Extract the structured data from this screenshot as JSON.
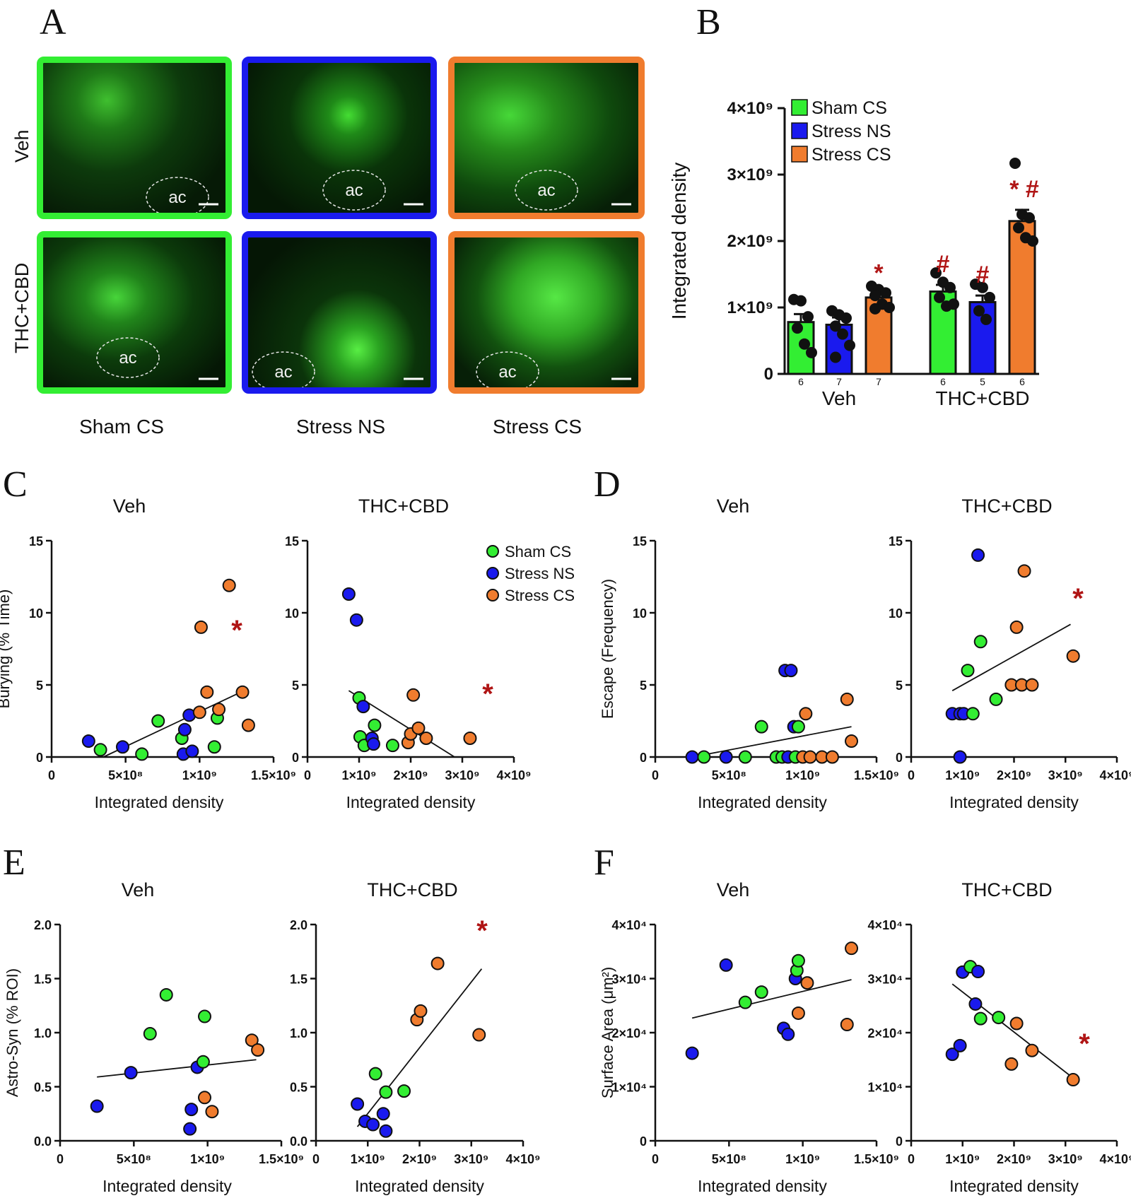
{
  "panels": {
    "A": "A",
    "B": "B",
    "C": "C",
    "D": "D",
    "E": "E",
    "F": "F"
  },
  "colors": {
    "sham": "#33ee33",
    "stressNS": "#1a1aee",
    "stressCS": "#f07c2e",
    "star": "#b01515"
  },
  "panelA": {
    "row_labels": [
      "Veh",
      "THC+CBD"
    ],
    "col_labels": [
      "Sham CS",
      "Stress NS",
      "Stress CS"
    ],
    "region_label": "ac"
  },
  "chart_data": [
    {
      "panel": "B",
      "type": "bar",
      "ylabel": "Integrated density",
      "yticks": [
        "0",
        "1×10⁹",
        "2×10⁹",
        "3×10⁹",
        "4×10⁹"
      ],
      "ylim": [
        0,
        4000000000.0
      ],
      "groups": [
        "Veh",
        "THC+CBD"
      ],
      "legend": [
        "Sham CS",
        "Stress NS",
        "Stress CS"
      ],
      "bars": [
        {
          "group": "Veh",
          "series": "Sham CS",
          "value": 780000000.0,
          "sem": 120000000.0,
          "n": "6",
          "mark": "",
          "points": [
            1120000000.0,
            1100000000.0,
            860000000.0,
            690000000.0,
            450000000.0,
            320000000.0
          ]
        },
        {
          "group": "Veh",
          "series": "Stress NS",
          "value": 740000000.0,
          "sem": 110000000.0,
          "n": "7",
          "mark": "",
          "points": [
            950000000.0,
            890000000.0,
            840000000.0,
            720000000.0,
            600000000.0,
            430000000.0,
            250000000.0
          ]
        },
        {
          "group": "Veh",
          "series": "Stress CS",
          "value": 1150000000.0,
          "sem": 60000000.0,
          "n": "7",
          "mark": "*",
          "points": [
            1320000000.0,
            1270000000.0,
            1220000000.0,
            1180000000.0,
            1050000000.0,
            1000000000.0,
            980000000.0
          ]
        },
        {
          "group": "THC+CBD",
          "series": "Sham CS",
          "value": 1240000000.0,
          "sem": 100000000.0,
          "n": "6",
          "mark": "#",
          "points": [
            1520000000.0,
            1380000000.0,
            1300000000.0,
            1150000000.0,
            1020000000.0,
            1050000000.0
          ]
        },
        {
          "group": "THC+CBD",
          "series": "Stress NS",
          "value": 1080000000.0,
          "sem": 100000000.0,
          "n": "5",
          "mark": "#",
          "points": [
            1350000000.0,
            1300000000.0,
            1150000000.0,
            950000000.0,
            820000000.0
          ]
        },
        {
          "group": "THC+CBD",
          "series": "Stress CS",
          "value": 2300000000.0,
          "sem": 170000000.0,
          "n": "6",
          "mark": "* #",
          "points": [
            3170000000.0,
            2400000000.0,
            2350000000.0,
            2200000000.0,
            2050000000.0,
            2000000000.0
          ]
        }
      ]
    },
    {
      "panel": "C",
      "type": "scatter",
      "title": "Veh",
      "ylabel": "Burying (% Time)",
      "xlabel": "Integrated density",
      "xlim": [
        0,
        1500000000.0
      ],
      "ylim": [
        0,
        15
      ],
      "xticks": [
        "0",
        "5×10⁸",
        "1×10⁹",
        "1.5×10⁹"
      ],
      "yticks": [
        "0",
        "5",
        "10",
        "15"
      ],
      "sig": "*",
      "fit": [
        [
          350000000.0,
          0
        ],
        [
          1300000000.0,
          4.6
        ]
      ],
      "points": [
        {
          "x": 250000000.0,
          "y": 1.1,
          "g": "NS"
        },
        {
          "x": 330000000.0,
          "y": 0.5,
          "g": "Sham"
        },
        {
          "x": 480000000.0,
          "y": 0.7,
          "g": "NS"
        },
        {
          "x": 610000000.0,
          "y": 0.2,
          "g": "Sham"
        },
        {
          "x": 720000000.0,
          "y": 2.5,
          "g": "Sham"
        },
        {
          "x": 880000000.0,
          "y": 1.3,
          "g": "Sham"
        },
        {
          "x": 900000000.0,
          "y": 1.9,
          "g": "NS"
        },
        {
          "x": 930000000.0,
          "y": 2.9,
          "g": "NS"
        },
        {
          "x": 890000000.0,
          "y": 0.2,
          "g": "NS"
        },
        {
          "x": 950000000.0,
          "y": 0.4,
          "g": "NS"
        },
        {
          "x": 1000000000.0,
          "y": 3.1,
          "g": "CS"
        },
        {
          "x": 1010000000.0,
          "y": 9.0,
          "g": "CS"
        },
        {
          "x": 1050000000.0,
          "y": 4.5,
          "g": "CS"
        },
        {
          "x": 1100000000.0,
          "y": 0.7,
          "g": "Sham"
        },
        {
          "x": 1120000000.0,
          "y": 2.7,
          "g": "Sham"
        },
        {
          "x": 1130000000.0,
          "y": 3.3,
          "g": "CS"
        },
        {
          "x": 1200000000.0,
          "y": 11.9,
          "g": "CS"
        },
        {
          "x": 1290000000.0,
          "y": 4.5,
          "g": "CS"
        },
        {
          "x": 1330000000.0,
          "y": 2.2,
          "g": "CS"
        }
      ]
    },
    {
      "panel": "C2",
      "type": "scatter",
      "title": "THC+CBD",
      "xlabel": "Integrated density",
      "xlim": [
        0,
        4000000000.0
      ],
      "ylim": [
        0,
        15
      ],
      "xticks": [
        "0",
        "1×10⁹",
        "2×10⁹",
        "3×10⁹",
        "4×10⁹"
      ],
      "yticks": [
        "0",
        "5",
        "10",
        "15"
      ],
      "sig": "*",
      "fit": [
        [
          800000000.0,
          4.6
        ],
        [
          2850000000.0,
          0
        ]
      ],
      "legend": [
        "Sham CS",
        "Stress NS",
        "Stress CS"
      ],
      "points": [
        {
          "x": 800000000.0,
          "y": 11.3,
          "g": "NS"
        },
        {
          "x": 950000000.0,
          "y": 9.5,
          "g": "NS"
        },
        {
          "x": 1000000000.0,
          "y": 4.1,
          "g": "Sham"
        },
        {
          "x": 1020000000.0,
          "y": 1.4,
          "g": "Sham"
        },
        {
          "x": 1080000000.0,
          "y": 3.5,
          "g": "NS"
        },
        {
          "x": 1100000000.0,
          "y": 0.8,
          "g": "Sham"
        },
        {
          "x": 1250000000.0,
          "y": 1.3,
          "g": "NS"
        },
        {
          "x": 1280000000.0,
          "y": 0.9,
          "g": "NS"
        },
        {
          "x": 1300000000.0,
          "y": 2.2,
          "g": "Sham"
        },
        {
          "x": 1650000000.0,
          "y": 0.8,
          "g": "Sham"
        },
        {
          "x": 1950000000.0,
          "y": 1.0,
          "g": "CS"
        },
        {
          "x": 2000000000.0,
          "y": 1.6,
          "g": "CS"
        },
        {
          "x": 2050000000.0,
          "y": 4.3,
          "g": "CS"
        },
        {
          "x": 2150000000.0,
          "y": 2.0,
          "g": "CS"
        },
        {
          "x": 2300000000.0,
          "y": 1.3,
          "g": "CS"
        },
        {
          "x": 3150000000.0,
          "y": 1.3,
          "g": "CS"
        }
      ]
    },
    {
      "panel": "D",
      "type": "scatter",
      "title": "Veh",
      "ylabel": "Escape (Frequency)",
      "xlabel": "Integrated density",
      "xlim": [
        0,
        1500000000.0
      ],
      "ylim": [
        0,
        15
      ],
      "xticks": [
        "0",
        "5×10⁸",
        "1×10⁹",
        "1.5×10⁹"
      ],
      "yticks": [
        "0",
        "5",
        "10",
        "15"
      ],
      "sig": "",
      "fit": [
        [
          250000000.0,
          0
        ],
        [
          1330000000.0,
          2.1
        ]
      ],
      "points": [
        {
          "x": 250000000.0,
          "y": 0,
          "g": "NS"
        },
        {
          "x": 330000000.0,
          "y": 0,
          "g": "Sham"
        },
        {
          "x": 480000000.0,
          "y": 0,
          "g": "NS"
        },
        {
          "x": 610000000.0,
          "y": 0,
          "g": "Sham"
        },
        {
          "x": 720000000.0,
          "y": 2.1,
          "g": "Sham"
        },
        {
          "x": 820000000.0,
          "y": 0,
          "g": "Sham"
        },
        {
          "x": 860000000.0,
          "y": 0,
          "g": "Sham"
        },
        {
          "x": 880000000.0,
          "y": 6.0,
          "g": "NS"
        },
        {
          "x": 920000000.0,
          "y": 6.0,
          "g": "NS"
        },
        {
          "x": 900000000.0,
          "y": 0,
          "g": "NS"
        },
        {
          "x": 940000000.0,
          "y": 2.1,
          "g": "NS"
        },
        {
          "x": 970000000.0,
          "y": 2.1,
          "g": "Sham"
        },
        {
          "x": 950000000.0,
          "y": 0,
          "g": "Sham"
        },
        {
          "x": 1000000000.0,
          "y": 0,
          "g": "CS"
        },
        {
          "x": 1020000000.0,
          "y": 3.0,
          "g": "CS"
        },
        {
          "x": 1050000000.0,
          "y": 0,
          "g": "CS"
        },
        {
          "x": 1130000000.0,
          "y": 0,
          "g": "CS"
        },
        {
          "x": 1200000000.0,
          "y": 0,
          "g": "CS"
        },
        {
          "x": 1300000000.0,
          "y": 4.0,
          "g": "CS"
        },
        {
          "x": 1330000000.0,
          "y": 1.1,
          "g": "CS"
        }
      ]
    },
    {
      "panel": "D2",
      "type": "scatter",
      "title": "THC+CBD",
      "xlabel": "Integrated density",
      "xlim": [
        0,
        4000000000.0
      ],
      "ylim": [
        0,
        15
      ],
      "xticks": [
        "0",
        "1×10⁹",
        "2×10⁹",
        "3×10⁹",
        "4×10⁹"
      ],
      "yticks": [
        "0",
        "5",
        "10",
        "15"
      ],
      "sig": "*",
      "fit": [
        [
          800000000.0,
          4.6
        ],
        [
          3100000000.0,
          9.2
        ]
      ],
      "points": [
        {
          "x": 800000000.0,
          "y": 3.0,
          "g": "NS"
        },
        {
          "x": 950000000.0,
          "y": 3.0,
          "g": "NS"
        },
        {
          "x": 1020000000.0,
          "y": 3.0,
          "g": "NS"
        },
        {
          "x": 1200000000.0,
          "y": 3.0,
          "g": "Sham"
        },
        {
          "x": 950000000.0,
          "y": 0,
          "g": "NS"
        },
        {
          "x": 1100000000.0,
          "y": 6.0,
          "g": "Sham"
        },
        {
          "x": 1300000000.0,
          "y": 14.0,
          "g": "NS"
        },
        {
          "x": 1350000000.0,
          "y": 8.0,
          "g": "Sham"
        },
        {
          "x": 1650000000.0,
          "y": 4.0,
          "g": "Sham"
        },
        {
          "x": 1950000000.0,
          "y": 5.0,
          "g": "CS"
        },
        {
          "x": 2050000000.0,
          "y": 9.0,
          "g": "CS"
        },
        {
          "x": 2150000000.0,
          "y": 5.0,
          "g": "CS"
        },
        {
          "x": 2200000000.0,
          "y": 12.9,
          "g": "CS"
        },
        {
          "x": 2350000000.0,
          "y": 5.0,
          "g": "CS"
        },
        {
          "x": 3150000000.0,
          "y": 7.0,
          "g": "CS"
        }
      ]
    },
    {
      "panel": "E",
      "type": "scatter",
      "title": "Veh",
      "ylabel": "Astro-Syn (% ROI)",
      "xlabel": "Integrated density",
      "xlim": [
        0,
        1500000000.0
      ],
      "ylim": [
        0,
        2.0
      ],
      "xticks": [
        "0",
        "5×10⁸",
        "1×10⁹",
        "1.5×10⁹"
      ],
      "yticks": [
        "0.0",
        "0.5",
        "1.0",
        "1.5",
        "2.0"
      ],
      "sig": "",
      "fit": [
        [
          250000000.0,
          0.59
        ],
        [
          1330000000.0,
          0.75
        ]
      ],
      "points": [
        {
          "x": 250000000.0,
          "y": 0.32,
          "g": "NS"
        },
        {
          "x": 480000000.0,
          "y": 0.63,
          "g": "NS"
        },
        {
          "x": 610000000.0,
          "y": 0.99,
          "g": "Sham"
        },
        {
          "x": 720000000.0,
          "y": 1.35,
          "g": "Sham"
        },
        {
          "x": 880000000.0,
          "y": 0.11,
          "g": "NS"
        },
        {
          "x": 890000000.0,
          "y": 0.29,
          "g": "NS"
        },
        {
          "x": 930000000.0,
          "y": 0.68,
          "g": "NS"
        },
        {
          "x": 970000000.0,
          "y": 0.73,
          "g": "Sham"
        },
        {
          "x": 980000000.0,
          "y": 1.15,
          "g": "Sham"
        },
        {
          "x": 980000000.0,
          "y": 0.4,
          "g": "CS"
        },
        {
          "x": 1030000000.0,
          "y": 0.27,
          "g": "CS"
        },
        {
          "x": 1300000000.0,
          "y": 0.93,
          "g": "CS"
        },
        {
          "x": 1340000000.0,
          "y": 0.84,
          "g": "CS"
        }
      ]
    },
    {
      "panel": "E2",
      "type": "scatter",
      "title": "THC+CBD",
      "xlabel": "Integrated density",
      "xlim": [
        0,
        4000000000.0
      ],
      "ylim": [
        0,
        2.0
      ],
      "xticks": [
        "0",
        "1×10⁹",
        "2×10⁹",
        "3×10⁹",
        "4×10⁹"
      ],
      "yticks": [
        "0.0",
        "0.5",
        "1.0",
        "1.5",
        "2.0"
      ],
      "sig": "*",
      "fit": [
        [
          800000000.0,
          0.13
        ],
        [
          3200000000.0,
          1.59
        ]
      ],
      "points": [
        {
          "x": 800000000.0,
          "y": 0.34,
          "g": "NS"
        },
        {
          "x": 950000000.0,
          "y": 0.18,
          "g": "NS"
        },
        {
          "x": 1100000000.0,
          "y": 0.15,
          "g": "NS"
        },
        {
          "x": 1150000000.0,
          "y": 0.62,
          "g": "Sham"
        },
        {
          "x": 1300000000.0,
          "y": 0.25,
          "g": "NS"
        },
        {
          "x": 1350000000.0,
          "y": 0.45,
          "g": "Sham"
        },
        {
          "x": 1350000000.0,
          "y": 0.09,
          "g": "NS"
        },
        {
          "x": 1700000000.0,
          "y": 0.46,
          "g": "Sham"
        },
        {
          "x": 1950000000.0,
          "y": 1.12,
          "g": "CS"
        },
        {
          "x": 2020000000.0,
          "y": 1.2,
          "g": "CS"
        },
        {
          "x": 2350000000.0,
          "y": 1.64,
          "g": "CS"
        },
        {
          "x": 3150000000.0,
          "y": 0.98,
          "g": "CS"
        }
      ]
    },
    {
      "panel": "F",
      "type": "scatter",
      "title": "Veh",
      "ylabel": "Surface Area (μm²)",
      "xlabel": "Integrated density",
      "xlim": [
        0,
        1500000000.0
      ],
      "ylim": [
        0,
        40000.0
      ],
      "xticks": [
        "0",
        "5×10⁸",
        "1×10⁹",
        "1.5×10⁹"
      ],
      "yticks": [
        "0",
        "1×10⁴",
        "2×10⁴",
        "3×10⁴",
        "4×10⁴"
      ],
      "sig": "",
      "fit": [
        [
          250000000.0,
          22700.0
        ],
        [
          1330000000.0,
          29800.0
        ]
      ],
      "points": [
        {
          "x": 250000000.0,
          "y": 16200.0,
          "g": "NS"
        },
        {
          "x": 480000000.0,
          "y": 32500.0,
          "g": "NS"
        },
        {
          "x": 610000000.0,
          "y": 25600.0,
          "g": "Sham"
        },
        {
          "x": 720000000.0,
          "y": 27500.0,
          "g": "Sham"
        },
        {
          "x": 870000000.0,
          "y": 20800.0,
          "g": "NS"
        },
        {
          "x": 900000000.0,
          "y": 19700.0,
          "g": "NS"
        },
        {
          "x": 950000000.0,
          "y": 30000.0,
          "g": "NS"
        },
        {
          "x": 960000000.0,
          "y": 31500.0,
          "g": "Sham"
        },
        {
          "x": 970000000.0,
          "y": 33300.0,
          "g": "Sham"
        },
        {
          "x": 970000000.0,
          "y": 23600.0,
          "g": "CS"
        },
        {
          "x": 1030000000.0,
          "y": 29200.0,
          "g": "CS"
        },
        {
          "x": 1300000000.0,
          "y": 21500.0,
          "g": "CS"
        },
        {
          "x": 1330000000.0,
          "y": 35600.0,
          "g": "CS"
        }
      ]
    },
    {
      "panel": "F2",
      "type": "scatter",
      "title": "THC+CBD",
      "xlabel": "Integrated density",
      "xlim": [
        0,
        4000000000.0
      ],
      "ylim": [
        0,
        40000.0
      ],
      "xticks": [
        "0",
        "1×10⁹",
        "2×10⁹",
        "3×10⁹",
        "4×10⁹"
      ],
      "yticks": [
        "0",
        "1×10⁴",
        "2×10⁴",
        "3×10⁴",
        "4×10⁴"
      ],
      "sig": "*",
      "fit": [
        [
          800000000.0,
          29000.0
        ],
        [
          3150000000.0,
          11600.0
        ]
      ],
      "points": [
        {
          "x": 800000000.0,
          "y": 16000.0,
          "g": "NS"
        },
        {
          "x": 950000000.0,
          "y": 17600.0,
          "g": "NS"
        },
        {
          "x": 1000000000.0,
          "y": 31200.0,
          "g": "NS"
        },
        {
          "x": 1150000000.0,
          "y": 32200.0,
          "g": "Sham"
        },
        {
          "x": 1250000000.0,
          "y": 25300.0,
          "g": "NS"
        },
        {
          "x": 1300000000.0,
          "y": 31300.0,
          "g": "NS"
        },
        {
          "x": 1350000000.0,
          "y": 22600.0,
          "g": "Sham"
        },
        {
          "x": 1700000000.0,
          "y": 22800.0,
          "g": "Sham"
        },
        {
          "x": 1950000000.0,
          "y": 14200.0,
          "g": "CS"
        },
        {
          "x": 2050000000.0,
          "y": 21700.0,
          "g": "CS"
        },
        {
          "x": 2350000000.0,
          "y": 16700.0,
          "g": "CS"
        },
        {
          "x": 3150000000.0,
          "y": 11300.0,
          "g": "CS"
        }
      ]
    }
  ]
}
